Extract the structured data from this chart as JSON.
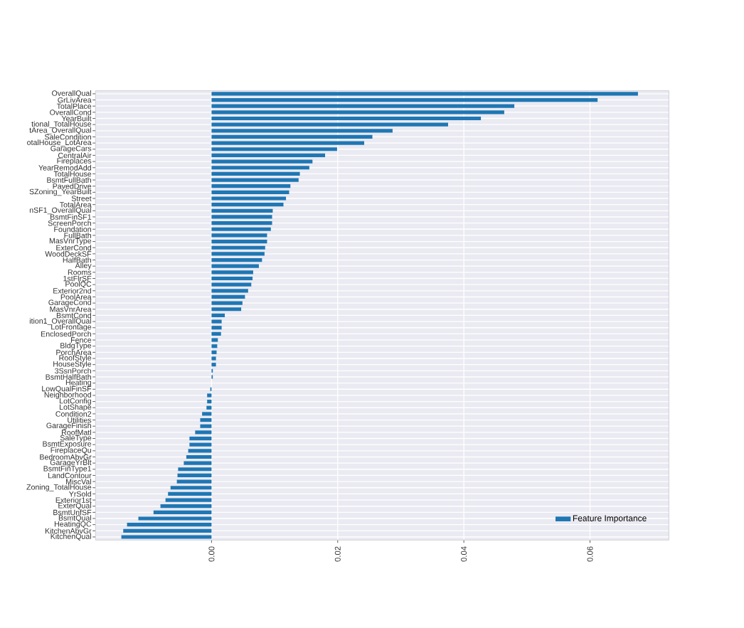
{
  "chart_data": {
    "type": "bar",
    "orientation": "horizontal",
    "categories": [
      "OverallQual",
      "GrLivArea",
      "TotalPlace",
      "OverallCond",
      "YearBuilt",
      "tional_TotalHouse",
      "tArea_OverallQual",
      "SaleCondition",
      "otalHouse_LotArea",
      "GarageCars",
      "CentralAir",
      "Fireplaces",
      "YearRemodAdd",
      "TotalHouse",
      "BsmtFullBath",
      "PavedDrive",
      "SZoning_YearBuilt",
      "Street",
      "TotalArea",
      "nSF1_OverallQual",
      "BsmtFinSF1",
      "ScreenPorch",
      "Foundation",
      "FullBath",
      "MasVnrType",
      "ExterCond",
      "WoodDeckSF",
      "HalfBath",
      "Alley",
      "Rooms",
      "1stFlrSF",
      "PoolQC",
      "Exterior2nd",
      "PoolArea",
      "GarageCond",
      "MasVnrArea",
      "BsmtCond",
      "ition1_OverallQual",
      "LotFrontage",
      "EnclosedPorch",
      "Fence",
      "BldgType",
      "PorchArea",
      "RoofStyle",
      "HouseStyle",
      "3SsnPorch",
      "BsmtHalfBath",
      "Heating",
      "LowQualFinSF",
      "Neighborhood",
      "LotConfig",
      "LotShape",
      "Condition2",
      "Utilities",
      "GarageFinish",
      "RoofMatl",
      "SaleType",
      "BsmtExposure",
      "FireplaceQu",
      "BedroomAbvGr",
      "GarageYrBlt",
      "BsmtFinType1",
      "LandContour",
      "MiscVal",
      "Zoning_TotalHouse",
      "YrSold",
      "Exterior1st",
      "ExterQual",
      "BsmtUnfSF",
      "BsmtQual",
      "HeatingQC",
      "KitchenAbvGr",
      "KitchenQual"
    ],
    "series": [
      {
        "name": "Feature Importance",
        "color": "#1f77b4",
        "values": [
          0.0676,
          0.0612,
          0.048,
          0.0464,
          0.0427,
          0.0375,
          0.0287,
          0.0255,
          0.0242,
          0.0199,
          0.018,
          0.016,
          0.0155,
          0.014,
          0.0138,
          0.0125,
          0.0123,
          0.0118,
          0.0114,
          0.0097,
          0.0096,
          0.0096,
          0.0094,
          0.0088,
          0.0088,
          0.0085,
          0.0084,
          0.008,
          0.0075,
          0.0066,
          0.0065,
          0.0063,
          0.0058,
          0.0053,
          0.0049,
          0.0047,
          0.0021,
          0.0016,
          0.0016,
          0.0015,
          0.001,
          0.0009,
          0.0008,
          0.0007,
          0.0007,
          0.0002,
          0.0002,
          0,
          -0.0002,
          -0.0007,
          -0.0007,
          -0.0008,
          -0.0015,
          -0.0018,
          -0.0018,
          -0.0026,
          -0.0035,
          -0.0035,
          -0.0037,
          -0.004,
          -0.0044,
          -0.0053,
          -0.0054,
          -0.0055,
          -0.0065,
          -0.0069,
          -0.0073,
          -0.0081,
          -0.0092,
          -0.0116,
          -0.0134,
          -0.014,
          -0.0143
        ]
      }
    ],
    "xlim": [
      -0.0184,
      0.0725
    ],
    "xticks": [
      {
        "value": 0,
        "label": "0.00"
      },
      {
        "value": 0.02,
        "label": "0.02"
      },
      {
        "value": 0.04,
        "label": "0.04"
      },
      {
        "value": 0.06,
        "label": "0.06"
      }
    ],
    "grid": true,
    "legend": "bottom right"
  }
}
